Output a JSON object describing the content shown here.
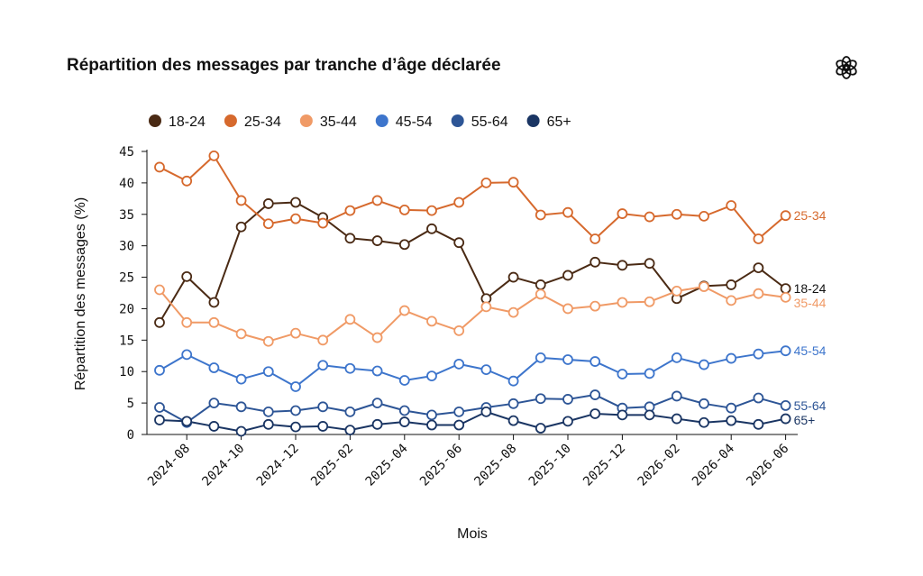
{
  "title": "Répartition des messages par tranche d’âge déclarée",
  "logo": "openai-logo",
  "chart_data": {
    "type": "line",
    "title": "Répartition des messages par tranche d’âge déclarée",
    "xlabel": "Mois",
    "ylabel": "Répartition des messages (%)",
    "ylim": [
      0,
      45
    ],
    "yticks": [
      "0",
      "5",
      "10",
      "15",
      "20",
      "25",
      "30",
      "35",
      "40",
      "45"
    ],
    "x": [
      "2024-07",
      "2024-08",
      "2024-09",
      "2024-10",
      "2024-11",
      "2024-12",
      "2025-01",
      "2025-02",
      "2025-03",
      "2025-04",
      "2025-05",
      "2025-06",
      "2025-07",
      "2025-08",
      "2025-09",
      "2025-10",
      "2025-11",
      "2025-12",
      "2026-01",
      "2026-02",
      "2026-03",
      "2026-04",
      "2026-05",
      "2026-06"
    ],
    "xtick_labels": [
      "2024-08",
      "2024-10",
      "2024-12",
      "2025-02",
      "2025-04",
      "2025-06",
      "2025-08",
      "2025-10",
      "2025-12",
      "2026-02",
      "2026-04",
      "2026-06"
    ],
    "grid": false,
    "legend_position": "top-left",
    "series": [
      {
        "name": "18-24",
        "color": "#4a2a14",
        "end_label": "18-24",
        "values": [
          17.8,
          25.1,
          21.0,
          33.0,
          36.7,
          36.9,
          34.5,
          31.2,
          30.8,
          30.2,
          32.7,
          30.5,
          21.6,
          25.0,
          23.8,
          25.3,
          27.4,
          26.9,
          27.2,
          21.6,
          23.6,
          23.8,
          26.5,
          23.2
        ]
      },
      {
        "name": "25-34",
        "color": "#d6692d",
        "end_label": "25-34",
        "values": [
          42.5,
          40.3,
          44.3,
          37.2,
          33.5,
          34.3,
          33.6,
          35.6,
          37.2,
          35.7,
          35.6,
          36.9,
          40.0,
          40.1,
          34.9,
          35.3,
          31.1,
          35.1,
          34.6,
          35.0,
          34.7,
          36.4,
          31.1,
          34.8
        ]
      },
      {
        "name": "35-44",
        "color": "#f09a66",
        "end_label": "35-44",
        "values": [
          23.0,
          17.8,
          17.8,
          16.0,
          14.8,
          16.1,
          15.0,
          18.3,
          15.4,
          19.7,
          18.0,
          16.5,
          20.3,
          19.4,
          22.3,
          20.0,
          20.4,
          21.0,
          21.1,
          22.8,
          23.5,
          21.3,
          22.4,
          21.8
        ]
      },
      {
        "name": "45-54",
        "color": "#3d75cc",
        "end_label": "45-54",
        "values": [
          10.2,
          12.7,
          10.6,
          8.8,
          10.0,
          7.6,
          11.0,
          10.5,
          10.1,
          8.6,
          9.3,
          11.2,
          10.3,
          8.5,
          12.2,
          11.9,
          11.6,
          9.6,
          9.7,
          12.2,
          11.1,
          12.1,
          12.8,
          13.3
        ]
      },
      {
        "name": "55-64",
        "color": "#2d5596",
        "end_label": "55-64",
        "values": [
          4.3,
          1.9,
          5.0,
          4.4,
          3.6,
          3.8,
          4.4,
          3.6,
          5.0,
          3.8,
          3.1,
          3.6,
          4.3,
          4.9,
          5.7,
          5.6,
          6.3,
          4.2,
          4.4,
          6.1,
          4.9,
          4.2,
          5.8,
          4.6
        ]
      },
      {
        "name": "65+",
        "color": "#1a3563",
        "end_label": "65+",
        "values": [
          2.3,
          2.1,
          1.3,
          0.5,
          1.6,
          1.2,
          1.3,
          0.7,
          1.6,
          2.0,
          1.5,
          1.5,
          3.6,
          2.2,
          1.0,
          2.1,
          3.3,
          3.1,
          3.1,
          2.5,
          1.9,
          2.2,
          1.6,
          2.5
        ]
      }
    ]
  }
}
